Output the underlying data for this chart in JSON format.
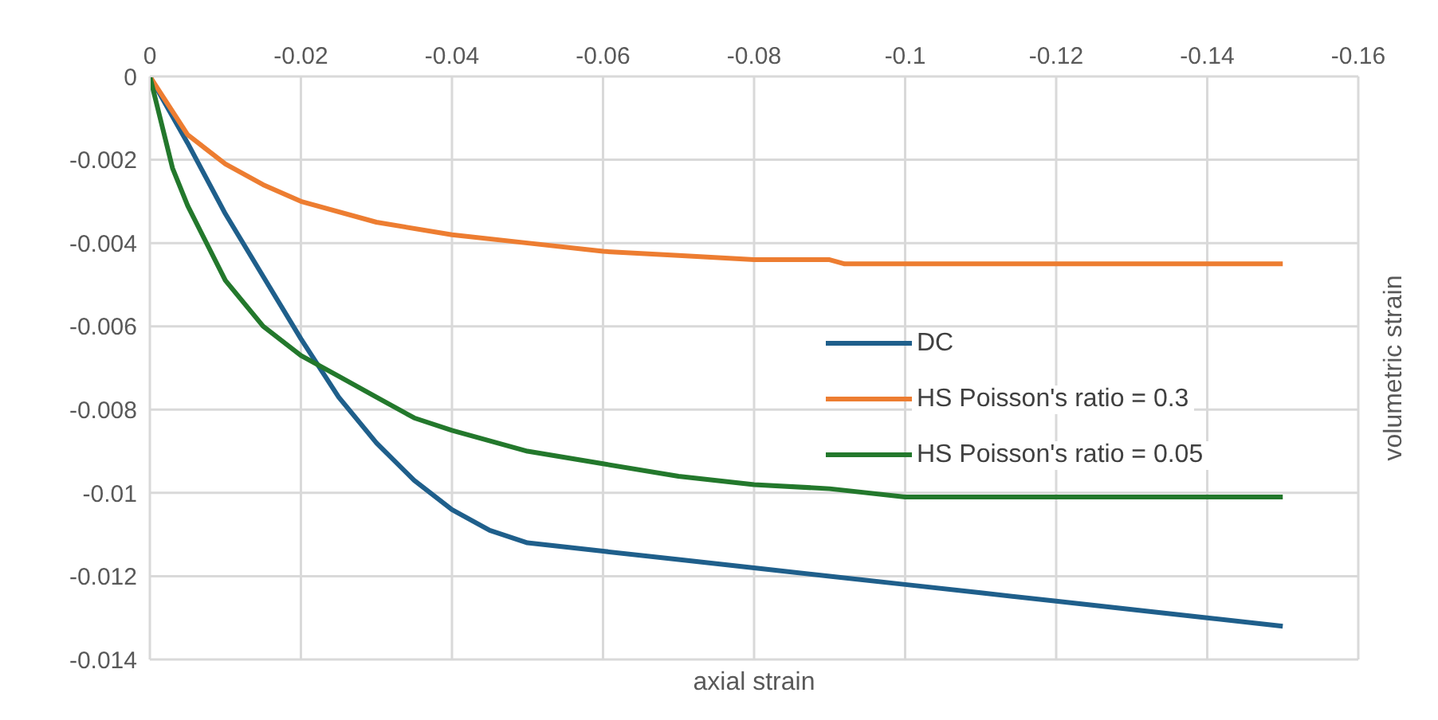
{
  "chart_data": {
    "type": "line",
    "xlabel": "axial strain",
    "ylabel": "volumetric strain",
    "xlim": [
      0,
      -0.16
    ],
    "xticks": [
      0,
      -0.02,
      -0.04,
      -0.06,
      -0.08,
      -0.1,
      -0.12,
      -0.14,
      -0.16
    ],
    "ylim": [
      -0.014,
      0
    ],
    "yticks": [
      0,
      -0.002,
      -0.004,
      -0.006,
      -0.008,
      -0.01,
      -0.012,
      -0.014
    ],
    "grid": true,
    "legend": "right",
    "marker": "none",
    "line_style": "solid",
    "series": [
      {
        "name": "DC",
        "color": "#1f5f8b",
        "x": [
          0,
          -0.005,
          -0.01,
          -0.015,
          -0.02,
          -0.025,
          -0.03,
          -0.035,
          -0.04,
          -0.045,
          -0.05,
          -0.06,
          -0.07,
          -0.08,
          -0.09,
          -0.1,
          -0.11,
          -0.12,
          -0.13,
          -0.14,
          -0.15
        ],
        "values": [
          0,
          -0.0016,
          -0.0033,
          -0.0048,
          -0.0063,
          -0.0077,
          -0.0088,
          -0.0097,
          -0.0104,
          -0.0109,
          -0.0112,
          -0.0114,
          -0.0116,
          -0.0118,
          -0.012,
          -0.0122,
          -0.0124,
          -0.0126,
          -0.0128,
          -0.013,
          -0.0132
        ]
      },
      {
        "name": "HS Poisson's ratio = 0.3",
        "color": "#ed7d31",
        "x": [
          0,
          -0.005,
          -0.01,
          -0.015,
          -0.02,
          -0.03,
          -0.04,
          -0.05,
          -0.06,
          -0.07,
          -0.08,
          -0.09,
          -0.092,
          -0.15
        ],
        "values": [
          0,
          -0.0014,
          -0.0021,
          -0.0026,
          -0.003,
          -0.0035,
          -0.0038,
          -0.004,
          -0.0042,
          -0.0043,
          -0.0044,
          -0.0044,
          -0.0045,
          -0.0045
        ]
      },
      {
        "name": "HS Poisson's ratio = 0.05",
        "color": "#23782c",
        "x": [
          0,
          -0.003,
          -0.005,
          -0.01,
          -0.015,
          -0.02,
          -0.025,
          -0.03,
          -0.035,
          -0.04,
          -0.05,
          -0.06,
          -0.07,
          -0.08,
          -0.09,
          -0.1,
          -0.15
        ],
        "values": [
          0,
          -0.0022,
          -0.0031,
          -0.0049,
          -0.006,
          -0.0067,
          -0.0072,
          -0.0077,
          -0.0082,
          -0.0085,
          -0.009,
          -0.0093,
          -0.0096,
          -0.0098,
          -0.0099,
          -0.0101,
          -0.0101
        ]
      }
    ]
  }
}
